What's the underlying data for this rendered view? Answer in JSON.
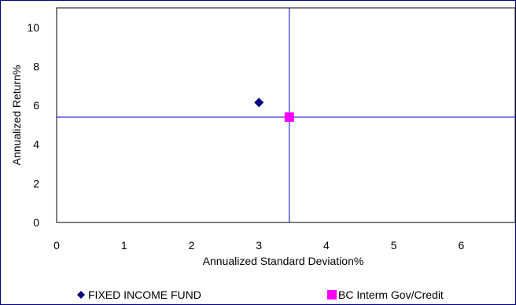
{
  "chart_data": {
    "type": "scatter",
    "title": "",
    "xlabel": "Annualized Standard Deviation%",
    "ylabel": "Annualized Return%",
    "xlim": [
      0,
      6.8
    ],
    "ylim": [
      0,
      11
    ],
    "x_ticks": [
      "0",
      "1",
      "2",
      "3",
      "4",
      "5",
      "6"
    ],
    "y_ticks": [
      "0",
      "2",
      "4",
      "6",
      "8",
      "10"
    ],
    "grid": false,
    "reference_lines": {
      "x": 3.45,
      "y": 5.4
    },
    "legend_position": "bottom",
    "series": [
      {
        "name": "FIXED INCOME FUND",
        "marker": "diamond",
        "color": "#000080",
        "points": [
          {
            "x": 3.0,
            "y": 6.15
          }
        ]
      },
      {
        "name": "BC Interm Gov/Credit",
        "marker": "square",
        "color": "#FF00FF",
        "points": [
          {
            "x": 3.45,
            "y": 5.4
          }
        ]
      }
    ]
  }
}
